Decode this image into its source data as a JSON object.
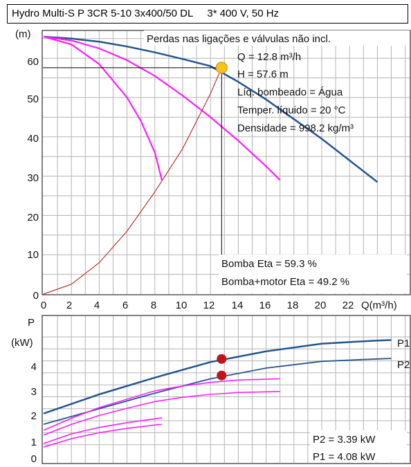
{
  "header": {
    "pump_name": "Hydro Multi-S P 3CR 5-10 3x400/50 DL",
    "power_supply": "3* 400 V, 50 Hz"
  },
  "colors": {
    "grid": "#b3b3b3",
    "pump_curve": "#23548c",
    "reduced_speed_curves": "#ff1cff",
    "system_curve": "#b8322b",
    "duty_point_fill": "#f7c21b",
    "power_point": "#c0141a"
  },
  "chart_data": [
    {
      "type": "line",
      "y_unit_label": "(m)",
      "x_unit_label": "Q(m³/h)",
      "xlim": [
        0,
        24.5
      ],
      "ylim": [
        0,
        65
      ],
      "x_ticks": [
        "0",
        "2",
        "4",
        "6",
        "8",
        "10",
        "12",
        "14",
        "16",
        "18",
        "20",
        "22"
      ],
      "y_ticks": [
        "0",
        "10",
        "20",
        "30",
        "40",
        "50",
        "60"
      ],
      "grid": true,
      "notes": {
        "losses": "Perdas nas ligações e válvulas não incl.",
        "flow": "Q = 12.8 m³/h",
        "head": "H = 57.6 m",
        "liquid": "Líq. bombeado = Água",
        "temperature": "Temper. líquido = 20 °C",
        "density": "Densidade = 998.2 kg/m³",
        "pump_eta": "Bomba Eta = 59.3 %",
        "pump_motor_eta": "Bomba+motor Eta = 49.2 %"
      },
      "duty_point": {
        "x": 12.8,
        "y": 57.6
      },
      "series": [
        {
          "x": [
            0,
            2,
            4,
            6,
            8,
            10,
            12,
            14,
            16,
            18,
            20,
            22,
            24
          ],
          "y": [
            65.5,
            65,
            64.2,
            63,
            61.5,
            59.8,
            58,
            54,
            49.5,
            44.5,
            39.5,
            34,
            28.5
          ]
        },
        {
          "x": [
            0,
            2,
            4,
            6,
            8,
            10,
            12,
            14,
            16,
            17
          ],
          "y": [
            65.5,
            64.5,
            62.5,
            59.5,
            55.5,
            50.5,
            45,
            39,
            32.5,
            29
          ]
        },
        {
          "x": [
            0,
            2,
            4,
            6,
            7,
            8,
            8.5
          ],
          "y": [
            65.5,
            63.5,
            58.5,
            50,
            44,
            36,
            29
          ]
        },
        {
          "x": [
            0,
            2,
            4,
            6,
            8,
            10,
            11,
            12,
            12.8
          ],
          "y": [
            0,
            2.5,
            8,
            16,
            26,
            37,
            44,
            51,
            57.6
          ]
        }
      ]
    },
    {
      "type": "line",
      "y_axis_letter": "P",
      "y_unit_label": "(kW)",
      "xlim": [
        0,
        24.5
      ],
      "ylim": [
        0,
        5.2
      ],
      "y_ticks": [
        "0",
        "1",
        "2",
        "3",
        "4"
      ],
      "grid": true,
      "notes": {
        "p2": "P2 = 3.39 kW",
        "p1": "P1 = 4.08 kW"
      },
      "points": [
        {
          "x": 12.8,
          "y": 4.08
        },
        {
          "x": 12.8,
          "y": 3.39
        }
      ],
      "series": [
        {
          "name": "P1",
          "x": [
            0,
            4,
            8,
            12,
            16,
            20,
            24,
            25
          ],
          "y": [
            1.8,
            2.6,
            3.3,
            3.95,
            4.4,
            4.72,
            4.85,
            4.87
          ]
        },
        {
          "name": "P2",
          "x": [
            0,
            4,
            8,
            12,
            16,
            20,
            24,
            25
          ],
          "y": [
            1.35,
            2.0,
            2.65,
            3.25,
            3.7,
            3.98,
            4.08,
            4.1
          ]
        },
        {
          "x": [
            0,
            2,
            4,
            6,
            8,
            10,
            12,
            14,
            17
          ],
          "y": [
            1.1,
            1.6,
            2.05,
            2.4,
            2.75,
            2.95,
            3.1,
            3.2,
            3.25
          ]
        },
        {
          "x": [
            0,
            2,
            4,
            6,
            8,
            10,
            12,
            14,
            17
          ],
          "y": [
            0.9,
            1.35,
            1.72,
            2.02,
            2.3,
            2.48,
            2.6,
            2.68,
            2.72
          ]
        },
        {
          "x": [
            0,
            2,
            4,
            6,
            8,
            8.5
          ],
          "y": [
            0.55,
            0.95,
            1.22,
            1.42,
            1.58,
            1.62
          ]
        },
        {
          "x": [
            0,
            2,
            4,
            6,
            8,
            8.5
          ],
          "y": [
            0.4,
            0.75,
            1.0,
            1.18,
            1.32,
            1.35
          ]
        }
      ]
    }
  ]
}
